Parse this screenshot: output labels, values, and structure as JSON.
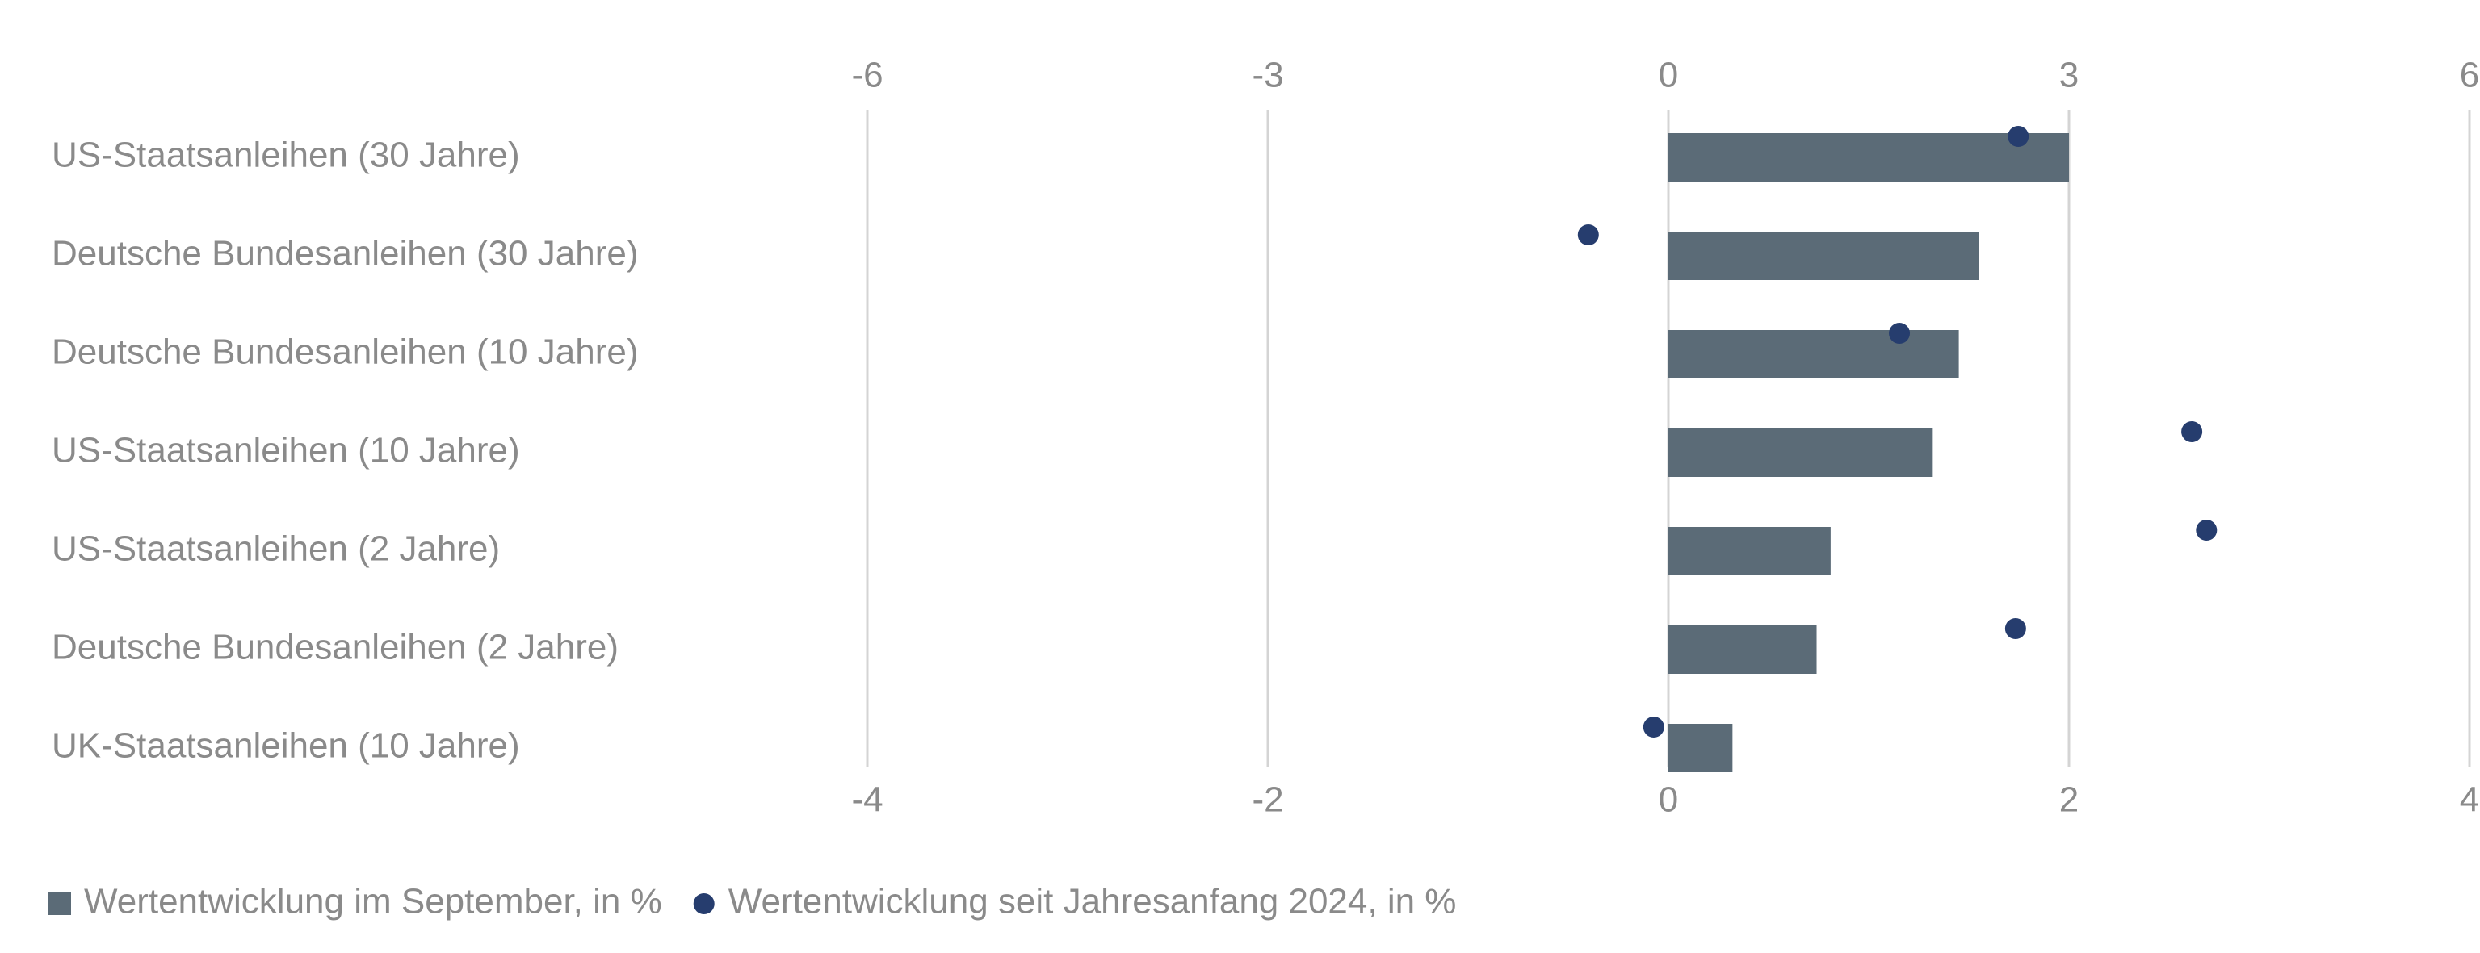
{
  "chart_data": {
    "type": "bar",
    "orientation": "horizontal",
    "categories": [
      "US-Staatsanleihen (30 Jahre)",
      "Deutsche Bundesanleihen (30 Jahre)",
      "Deutsche Bundesanleihen (10 Jahre)",
      "US-Staatsanleihen (10 Jahre)",
      "US-Staatsanleihen (2 Jahre)",
      "Deutsche Bundesanleihen (2 Jahre)",
      "UK-Staatsanleihen (10 Jahre)"
    ],
    "series": [
      {
        "name": "Wertentwicklung im September, in %",
        "color": "#5b6b77",
        "type": "bar",
        "values": [
          2.0,
          1.55,
          1.45,
          1.32,
          0.81,
          0.74,
          0.32
        ]
      },
      {
        "name": "Wertentwicklung seit Jahresanfang 2024, in %",
        "color": "#263d6e",
        "type": "scatter",
        "axis": "x2",
        "values": [
          2.62,
          -0.6,
          1.73,
          3.92,
          4.03,
          2.6,
          -0.11
        ]
      }
    ],
    "xlim": [
      -4,
      4
    ],
    "xticks": [
      -4,
      -2,
      0,
      2,
      4
    ],
    "x2lim": [
      -6,
      6
    ],
    "x2ticks": [
      -6,
      -3,
      0,
      3,
      6
    ],
    "grid": true,
    "legend": "bottom-left"
  }
}
